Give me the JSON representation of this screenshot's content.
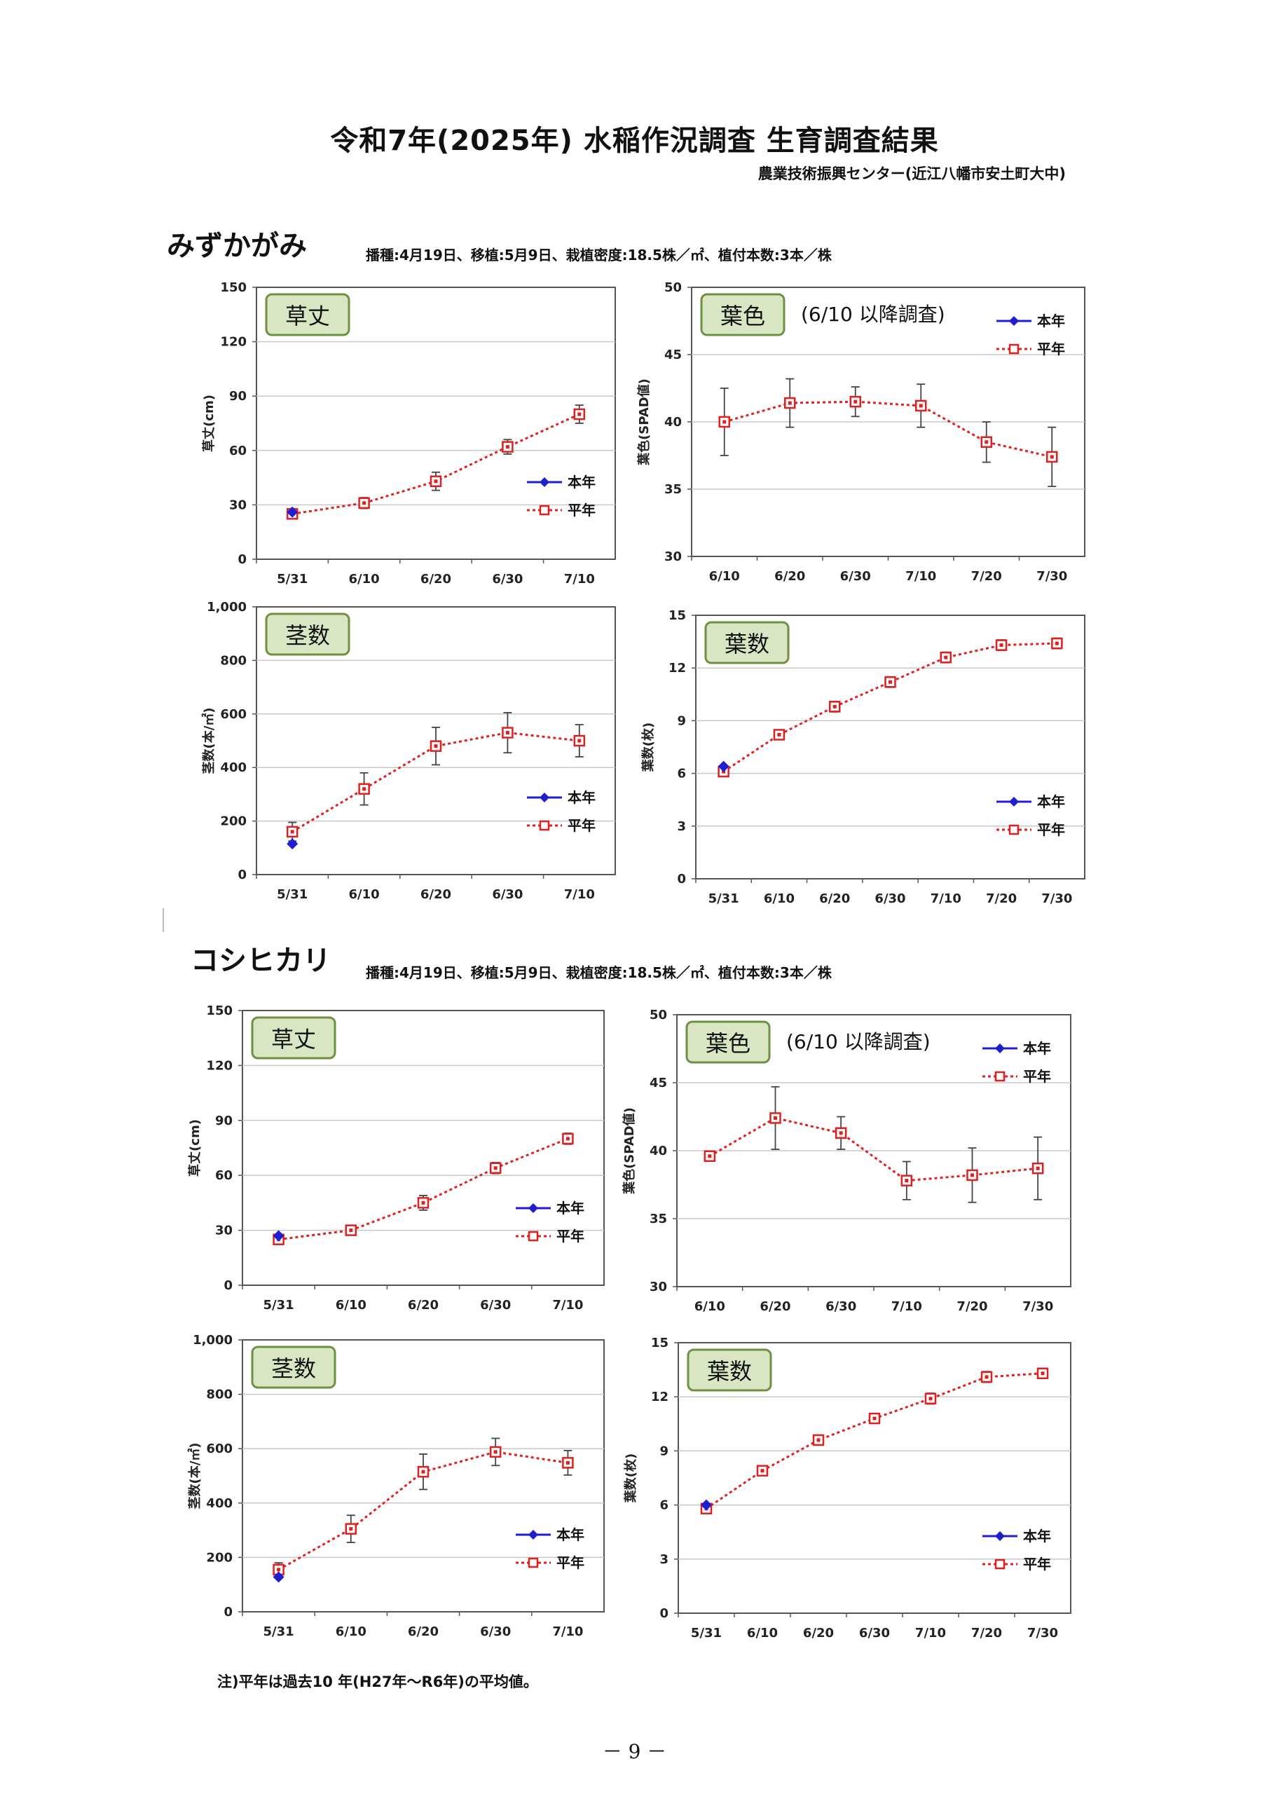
{
  "title": "令和7年(2025年) 水稲作況調査 生育調査結果",
  "organization": "農業技術振興センター(近江八幡市安土町大中)",
  "note": "注)平年は過去10 年(H27年～R6年)の平均値。",
  "page_number": "－ 9 －",
  "legend": {
    "current": "本年",
    "normal": "平年"
  },
  "colors": {
    "current": "#1f1fd0",
    "normal": "#e02020",
    "badge_fill": "#d8e6c3",
    "badge_border": "#6f8f42",
    "grid": "#c8c8c8"
  },
  "sections": [
    {
      "variety": "みずかがみ",
      "conditions": "播種:4月19日、移植:5月9日、栽植密度:18.5株／㎡、植付本数:3本／株"
    },
    {
      "variety": "コシヒカリ",
      "conditions": "播種:4月19日、移植:5月9日、栽植密度:18.5株／㎡、植付本数:3本／株"
    }
  ],
  "chart_data": [
    {
      "id": "mizu-height",
      "type": "line",
      "badge": "草丈",
      "ylabel": "草丈(cm)",
      "note": "",
      "categories": [
        "5/31",
        "6/10",
        "6/20",
        "6/30",
        "7/10"
      ],
      "ylim": [
        0,
        150
      ],
      "yticks": [
        "0",
        "30",
        "60",
        "90",
        "120",
        "150"
      ],
      "series": [
        {
          "name": "本年",
          "values": [
            26,
            null,
            null,
            null,
            null
          ]
        },
        {
          "name": "平年",
          "values": [
            25,
            31,
            43,
            62,
            80
          ],
          "error": [
            1,
            3,
            5,
            4,
            5
          ]
        }
      ],
      "legend_position": "bottom-right"
    },
    {
      "id": "mizu-color",
      "type": "line",
      "badge": "葉色",
      "ylabel": "葉色(SPAD値)",
      "note": "(6/10 以降調査)",
      "categories": [
        "6/10",
        "6/20",
        "6/30",
        "7/10",
        "7/20",
        "7/30"
      ],
      "ylim": [
        30,
        50
      ],
      "yticks": [
        "30",
        "35",
        "40",
        "45",
        "50"
      ],
      "series": [
        {
          "name": "本年",
          "values": [
            null,
            null,
            null,
            null,
            null,
            null
          ]
        },
        {
          "name": "平年",
          "values": [
            40.0,
            41.4,
            41.5,
            41.2,
            38.5,
            37.4
          ],
          "error": [
            2.5,
            1.8,
            1.1,
            1.6,
            1.5,
            2.2
          ]
        }
      ],
      "legend_position": "top-right"
    },
    {
      "id": "mizu-stems",
      "type": "line",
      "badge": "茎数",
      "ylabel": "茎数(本/㎡)",
      "note": "",
      "categories": [
        "5/31",
        "6/10",
        "6/20",
        "6/30",
        "7/10"
      ],
      "ylim": [
        0,
        1000
      ],
      "yticks": [
        "0",
        "200",
        "400",
        "600",
        "800",
        "1,000"
      ],
      "series": [
        {
          "name": "本年",
          "values": [
            115,
            null,
            null,
            null,
            null
          ]
        },
        {
          "name": "平年",
          "values": [
            160,
            320,
            480,
            530,
            500
          ],
          "error": [
            35,
            60,
            70,
            75,
            60
          ]
        }
      ],
      "legend_position": "bottom-right"
    },
    {
      "id": "mizu-leaves",
      "type": "line",
      "badge": "葉数",
      "ylabel": "葉数(枚)",
      "note": "",
      "categories": [
        "5/31",
        "6/10",
        "6/20",
        "6/30",
        "7/10",
        "7/20",
        "7/30"
      ],
      "ylim": [
        0,
        15
      ],
      "yticks": [
        "0",
        "3",
        "6",
        "9",
        "12",
        "15"
      ],
      "series": [
        {
          "name": "本年",
          "values": [
            6.4,
            null,
            null,
            null,
            null,
            null,
            null
          ]
        },
        {
          "name": "平年",
          "values": [
            6.1,
            8.2,
            9.8,
            11.2,
            12.6,
            13.3,
            13.4
          ],
          "error": [
            0.2,
            0.2,
            0.3,
            0.3,
            0.3,
            0.3,
            0.3
          ]
        }
      ],
      "legend_position": "bottom-right"
    },
    {
      "id": "koshi-height",
      "type": "line",
      "badge": "草丈",
      "ylabel": "草丈(cm)",
      "note": "",
      "categories": [
        "5/31",
        "6/10",
        "6/20",
        "6/30",
        "7/10"
      ],
      "ylim": [
        0,
        150
      ],
      "yticks": [
        "0",
        "30",
        "60",
        "90",
        "120",
        "150"
      ],
      "series": [
        {
          "name": "本年",
          "values": [
            27,
            null,
            null,
            null,
            null
          ]
        },
        {
          "name": "平年",
          "values": [
            25,
            30,
            45,
            64,
            80
          ],
          "error": [
            1,
            2,
            4,
            3,
            3
          ]
        }
      ],
      "legend_position": "bottom-right"
    },
    {
      "id": "koshi-color",
      "type": "line",
      "badge": "葉色",
      "ylabel": "葉色(SPAD値)",
      "note": "(6/10 以降調査)",
      "categories": [
        "6/10",
        "6/20",
        "6/30",
        "7/10",
        "7/20",
        "7/30"
      ],
      "ylim": [
        30,
        50
      ],
      "yticks": [
        "30",
        "35",
        "40",
        "45",
        "50"
      ],
      "series": [
        {
          "name": "本年",
          "values": [
            null,
            null,
            null,
            null,
            null,
            null
          ]
        },
        {
          "name": "平年",
          "values": [
            39.6,
            42.4,
            41.3,
            37.8,
            38.2,
            38.7
          ],
          "error": [
            0,
            2.3,
            1.2,
            1.4,
            2.0,
            2.3
          ]
        }
      ],
      "legend_position": "top-right"
    },
    {
      "id": "koshi-stems",
      "type": "line",
      "badge": "茎数",
      "ylabel": "茎数(本/㎡)",
      "note": "",
      "categories": [
        "5/31",
        "6/10",
        "6/20",
        "6/30",
        "7/10"
      ],
      "ylim": [
        0,
        1000
      ],
      "yticks": [
        "0",
        "200",
        "400",
        "600",
        "800",
        "1,000"
      ],
      "series": [
        {
          "name": "本年",
          "values": [
            128,
            null,
            null,
            null,
            null
          ]
        },
        {
          "name": "平年",
          "values": [
            155,
            305,
            515,
            588,
            548
          ],
          "error": [
            25,
            50,
            65,
            50,
            45
          ]
        }
      ],
      "legend_position": "bottom-right"
    },
    {
      "id": "koshi-leaves",
      "type": "line",
      "badge": "葉数",
      "ylabel": "葉数(枚)",
      "note": "",
      "categories": [
        "5/31",
        "6/10",
        "6/20",
        "6/30",
        "7/10",
        "7/20",
        "7/30"
      ],
      "ylim": [
        0,
        15
      ],
      "yticks": [
        "0",
        "3",
        "6",
        "9",
        "12",
        "15"
      ],
      "series": [
        {
          "name": "本年",
          "values": [
            6.0,
            null,
            null,
            null,
            null,
            null,
            null
          ]
        },
        {
          "name": "平年",
          "values": [
            5.8,
            7.9,
            9.6,
            10.8,
            11.9,
            13.1,
            13.3
          ],
          "error": [
            0.2,
            0.2,
            0.2,
            0.2,
            0.3,
            0.3,
            0.2
          ]
        }
      ],
      "legend_position": "bottom-right"
    }
  ]
}
